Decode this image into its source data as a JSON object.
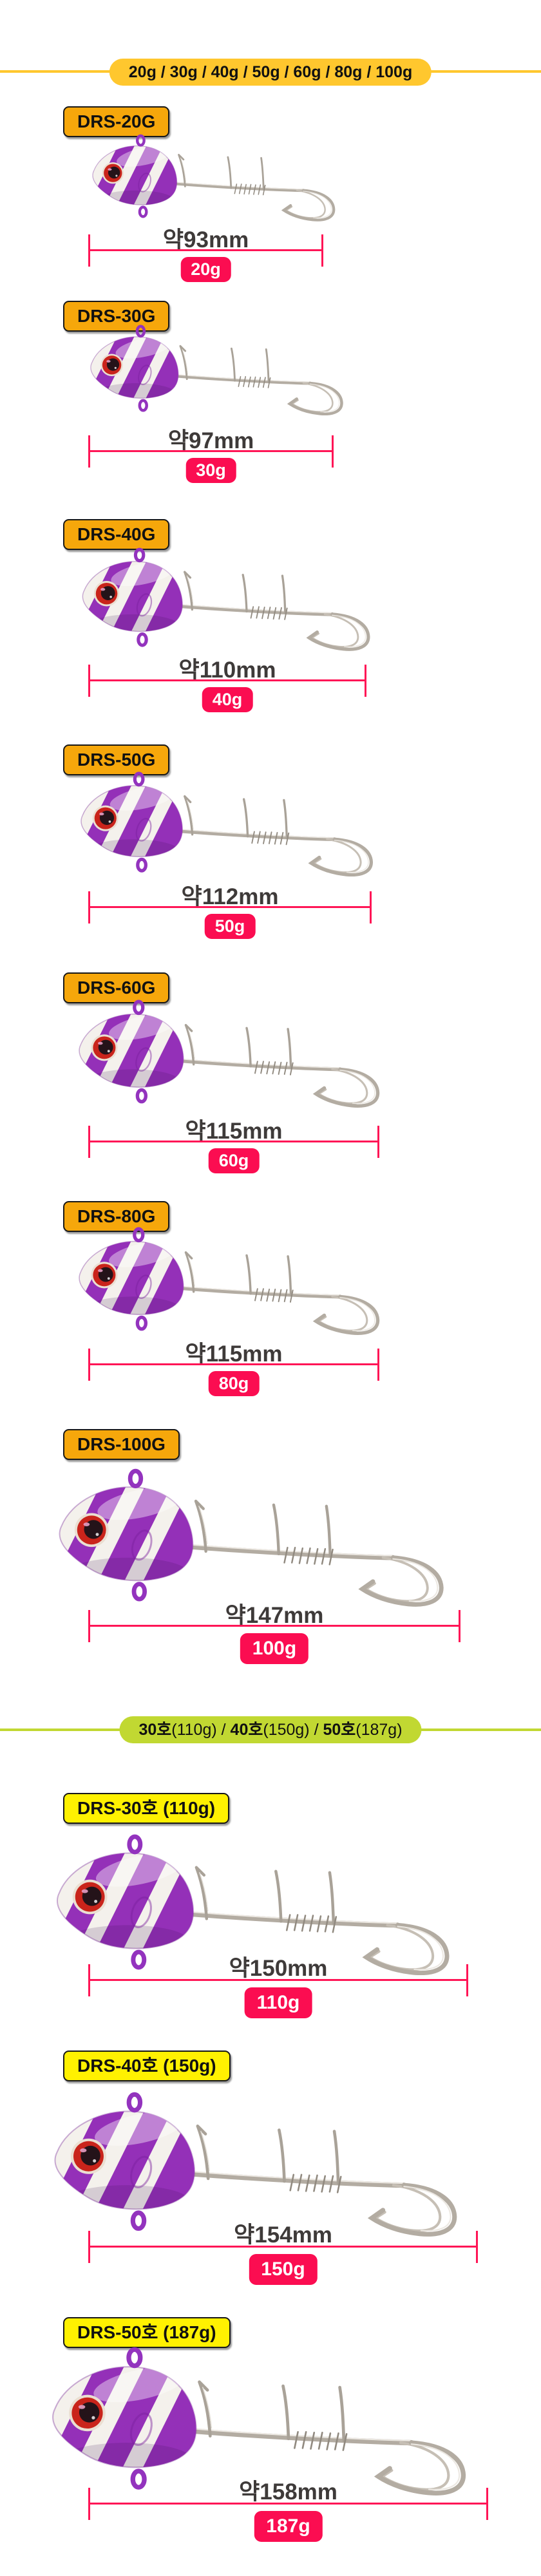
{
  "page": {
    "title": "DRS jig head size chart",
    "background": "#ffffff"
  },
  "colors": {
    "divider1_yellow": "#FFC72E",
    "divider2_green": "#C1D832",
    "badge_orange": "#F6A70B",
    "badge_yellow": "#FFF101",
    "dimension_pink": "#FF1556",
    "weight_badge_pink": "#FB0D51",
    "label_text": "#3E3A39",
    "jig_purple": "#9430B8",
    "jig_purple_dark": "#8A27AC",
    "jig_white": "#F4F1EC",
    "jig_eye_red": "#C9241B",
    "jig_metal_silver": "#B3ACA2"
  },
  "dividers": [
    {
      "label": "20g / 30g / 40g / 50g / 60g / 80g / 100g",
      "segments": [
        {
          "text": "20g / 30g / 40g / 50g / 60g / 80g / 100g",
          "bold": true
        }
      ]
    },
    {
      "label": "30호(110g) / 40호(150g) / 50호(187g)",
      "segments": [
        {
          "text": "30호",
          "bold": true
        },
        {
          "text": "(110g)",
          "bold": false
        },
        {
          "text": " / ",
          "bold": false
        },
        {
          "text": "40호",
          "bold": true
        },
        {
          "text": "(150g)",
          "bold": false
        },
        {
          "text": " / ",
          "bold": false
        },
        {
          "text": "50호",
          "bold": true
        },
        {
          "text": "(187g)",
          "bold": false
        }
      ]
    }
  ],
  "sections": [
    {
      "name": "DRS-20G",
      "style": "orange",
      "length_label": "약93mm",
      "length_mm": 93,
      "weight_label": "20g"
    },
    {
      "name": "DRS-30G",
      "style": "orange",
      "length_label": "약97mm",
      "length_mm": 97,
      "weight_label": "30g"
    },
    {
      "name": "DRS-40G",
      "style": "orange",
      "length_label": "약110mm",
      "length_mm": 110,
      "weight_label": "40g"
    },
    {
      "name": "DRS-50G",
      "style": "orange",
      "length_label": "약112mm",
      "length_mm": 112,
      "weight_label": "50g"
    },
    {
      "name": "DRS-60G",
      "style": "orange",
      "length_label": "약115mm",
      "length_mm": 115,
      "weight_label": "60g"
    },
    {
      "name": "DRS-80G",
      "style": "orange",
      "length_label": "약115mm",
      "length_mm": 115,
      "weight_label": "80g"
    },
    {
      "name": "DRS-100G",
      "style": "orange",
      "length_label": "약147mm",
      "length_mm": 147,
      "weight_label": "100g"
    },
    {
      "name": "DRS-30호 (110g)",
      "style": "yellow",
      "length_label": "약150mm",
      "length_mm": 150,
      "weight_label": "110g"
    },
    {
      "name": "DRS-40호 (150g)",
      "style": "yellow",
      "length_label": "약154mm",
      "length_mm": 154,
      "weight_label": "150g"
    },
    {
      "name": "DRS-50호 (187g)",
      "style": "yellow",
      "length_label": "약158mm",
      "length_mm": 158,
      "weight_label": "187g"
    }
  ]
}
